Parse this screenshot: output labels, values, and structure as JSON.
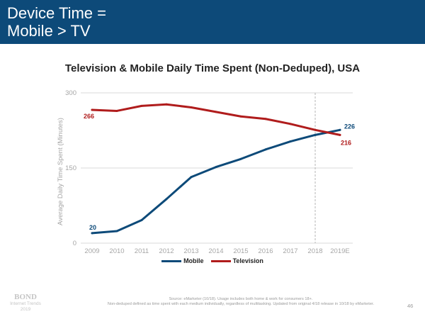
{
  "slide": {
    "title_line1": "Device Time =",
    "title_line2": "Mobile > TV"
  },
  "chart_data": {
    "type": "line",
    "title": "Television & Mobile Daily Time Spent (Non-Deduped), USA",
    "ylabel": "Average Daily Time Spent (Minutes)",
    "categories": [
      "2009",
      "2010",
      "2011",
      "2012",
      "2013",
      "2014",
      "2015",
      "2016",
      "2017",
      "2018",
      "2019E"
    ],
    "ylim": [
      0,
      300
    ],
    "yticks": [
      0,
      150,
      300
    ],
    "grid": true,
    "reference_line": "2018",
    "legend_position": "bottom",
    "series": [
      {
        "name": "Mobile",
        "color": "#0d4a79",
        "values": [
          20,
          24,
          46,
          88,
          132,
          152,
          168,
          187,
          203,
          216,
          226
        ],
        "labels": [
          {
            "index": 0,
            "text": "20"
          },
          {
            "index": 10,
            "text": "226"
          }
        ]
      },
      {
        "name": "Television",
        "color": "#b01c1c",
        "values": [
          266,
          264,
          274,
          277,
          271,
          262,
          253,
          248,
          238,
          226,
          216
        ],
        "labels": [
          {
            "index": 0,
            "text": "266"
          },
          {
            "index": 10,
            "text": "216"
          }
        ]
      }
    ]
  },
  "footer": {
    "source_line1": "Source: eMarketer (10/18). Usage includes both home & work for consumers 18+.",
    "source_line2": "Non-deduped defined as time spent with each medium individually, regardless of multitasking. Updated from original 4/18 release in 10/18 by eMarketer.",
    "logo_name": "BOND",
    "logo_line1": "Internet Trends",
    "logo_line2": "2019",
    "page_number": "46"
  },
  "colors": {
    "header_bg": "#0d4a79",
    "mobile": "#0d4a79",
    "television": "#b01c1c",
    "grid": "#d9d9d9"
  }
}
